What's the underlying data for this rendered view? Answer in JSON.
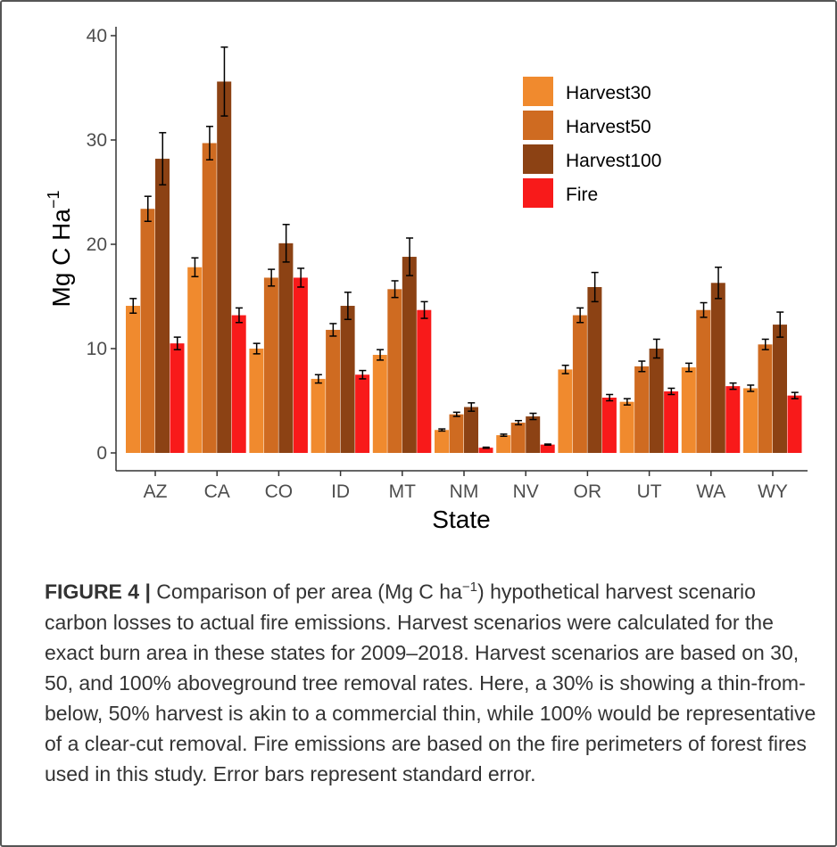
{
  "chart_data": {
    "type": "bar",
    "xlabel": "State",
    "ylabel": "Mg C Ha",
    "ylabel_superscript": "−1",
    "ylim": [
      0,
      40
    ],
    "yticks": [
      "0",
      "10",
      "20",
      "30",
      "40"
    ],
    "grid": false,
    "legend_position": "top-right",
    "categories": [
      "AZ",
      "CA",
      "CO",
      "ID",
      "MT",
      "NM",
      "NV",
      "OR",
      "UT",
      "WA",
      "WY"
    ],
    "series": [
      {
        "name": "Harvest30",
        "color": "#f08a2e",
        "values": [
          14.1,
          17.8,
          10.0,
          7.1,
          9.4,
          2.2,
          1.7,
          8.0,
          4.9,
          8.2,
          6.2
        ],
        "errors": [
          0.7,
          0.9,
          0.5,
          0.4,
          0.5,
          0.1,
          0.1,
          0.4,
          0.3,
          0.4,
          0.3
        ]
      },
      {
        "name": "Harvest50",
        "color": "#cf6b21",
        "values": [
          23.4,
          29.7,
          16.8,
          11.8,
          15.7,
          3.7,
          2.9,
          13.2,
          8.3,
          13.7,
          10.4
        ],
        "errors": [
          1.2,
          1.6,
          0.8,
          0.6,
          0.8,
          0.2,
          0.2,
          0.7,
          0.5,
          0.7,
          0.5
        ]
      },
      {
        "name": "Harvest100",
        "color": "#8c4214",
        "values": [
          28.2,
          35.6,
          20.1,
          14.1,
          18.8,
          4.4,
          3.5,
          15.9,
          10.0,
          16.3,
          12.3
        ],
        "errors": [
          2.5,
          3.3,
          1.8,
          1.3,
          1.8,
          0.4,
          0.3,
          1.4,
          0.9,
          1.5,
          1.2
        ]
      },
      {
        "name": "Fire",
        "color": "#f81a1a",
        "values": [
          10.5,
          13.2,
          16.8,
          7.5,
          13.7,
          0.5,
          0.8,
          5.3,
          5.9,
          6.4,
          5.5
        ],
        "errors": [
          0.6,
          0.7,
          0.9,
          0.4,
          0.8,
          0.05,
          0.05,
          0.3,
          0.3,
          0.3,
          0.3
        ]
      }
    ]
  },
  "caption": {
    "label": "FIGURE 4 |",
    "text_before": " Comparison of per area (Mg C ha",
    "superscript": "−1",
    "text_after": ") hypothetical harvest scenario carbon losses to actual fire emissions. Harvest scenarios were calculated for the exact burn area in these states for 2009–2018. Harvest scenarios are based on 30, 50, and 100% aboveground tree removal rates. Here, a 30% is showing a thin-from-below, 50% harvest is akin to a commercial thin, while 100% would be representative of a clear-cut removal. Fire emissions are based on the fire perimeters of forest fires used in this study. Error bars represent standard error."
  }
}
